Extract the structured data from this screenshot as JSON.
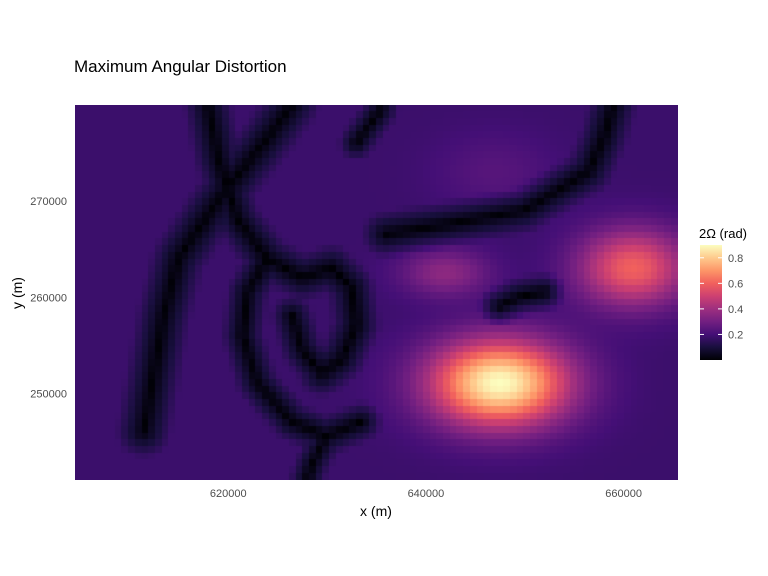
{
  "chart_data": {
    "type": "heatmap",
    "title": "Maximum Angular Distortion",
    "xlabel": "x (m)",
    "ylabel": "y (m)",
    "xlim": [
      604500,
      665500
    ],
    "ylim": [
      241000,
      280000
    ],
    "x_ticks": [
      620000,
      640000,
      660000
    ],
    "x_tick_labels": [
      "620000",
      "640000",
      "660000"
    ],
    "y_ticks": [
      250000,
      260000,
      270000
    ],
    "y_tick_labels": [
      "250000",
      "260000",
      "270000"
    ],
    "grid": false,
    "colormap": "magma",
    "colors": [
      "#000004",
      "#180f3d",
      "#440f76",
      "#721f81",
      "#9e2f7f",
      "#cd4071",
      "#f1605d",
      "#fd9668",
      "#feca8d",
      "#fcfdbf"
    ],
    "legend": {
      "title": "2Ω (rad)",
      "placement": "right",
      "range": [
        0.0,
        0.9
      ],
      "ticks": [
        0.2,
        0.4,
        0.6,
        0.8
      ],
      "tick_labels": [
        "0.2",
        "0.4",
        "0.6",
        "0.8"
      ]
    },
    "value_range": [
      0.0,
      0.9
    ],
    "field": {
      "base": 0.18,
      "peaks": [
        {
          "x": 647500,
          "y": 251000,
          "sx": 7000,
          "sy": 4500,
          "amp": 0.72
        },
        {
          "x": 661000,
          "y": 263000,
          "sx": 5500,
          "sy": 4000,
          "amp": 0.42
        },
        {
          "x": 642000,
          "y": 262500,
          "sx": 4500,
          "sy": 2500,
          "amp": 0.18
        },
        {
          "x": 647000,
          "y": 273000,
          "sx": 6000,
          "sy": 4000,
          "amp": 0.06
        }
      ],
      "zero_curves": [
        {
          "points": [
            [
              611500,
              246000
            ],
            [
              612500,
              252000
            ],
            [
              613500,
              258000
            ],
            [
              615000,
              264000
            ],
            [
              619000,
              270000
            ],
            [
              624000,
              276500
            ],
            [
              626500,
              280000
            ]
          ],
          "width": 900
        },
        {
          "points": [
            [
              618000,
              280000
            ],
            [
              619000,
              274500
            ],
            [
              621000,
              268000
            ],
            [
              624000,
              264000
            ],
            [
              627500,
              262000
            ]
          ],
          "width": 800
        },
        {
          "points": [
            [
              627500,
              262000
            ],
            [
              630500,
              263000
            ],
            [
              632500,
              261000
            ],
            [
              633000,
              257000
            ],
            [
              631500,
              253500
            ],
            [
              629500,
              252000
            ]
          ],
          "width": 800
        },
        {
          "points": [
            [
              629500,
              252000
            ],
            [
              627500,
              254500
            ],
            [
              626500,
              258000
            ]
          ],
          "width": 700
        },
        {
          "points": [
            [
              624000,
              264000
            ],
            [
              622000,
              260500
            ],
            [
              621500,
              256000
            ],
            [
              623000,
              251000
            ],
            [
              626500,
              247000
            ],
            [
              630000,
              245500
            ],
            [
              633500,
              247000
            ]
          ],
          "width": 700
        },
        {
          "points": [
            [
              630000,
              245500
            ],
            [
              628500,
              242500
            ],
            [
              628000,
              241000
            ]
          ],
          "width": 600
        },
        {
          "points": [
            [
              636000,
              266500
            ],
            [
              642000,
              267500
            ],
            [
              650000,
              269000
            ],
            [
              656500,
              273000
            ],
            [
              658000,
              276500
            ],
            [
              659000,
              280000
            ]
          ],
          "width": 800
        },
        {
          "points": [
            [
              647500,
              259000
            ],
            [
              649500,
              260000
            ],
            [
              652000,
              260500
            ]
          ],
          "width": 700
        },
        {
          "points": [
            [
              633000,
              276000
            ],
            [
              635500,
              279500
            ]
          ],
          "width": 600
        }
      ]
    }
  }
}
